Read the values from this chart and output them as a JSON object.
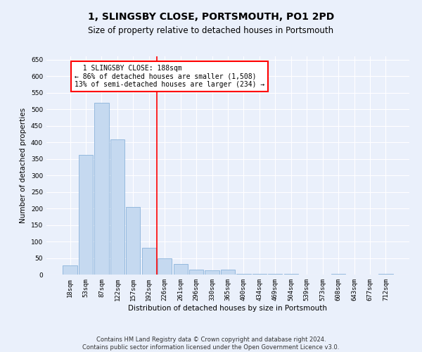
{
  "title": "1, SLINGSBY CLOSE, PORTSMOUTH, PO1 2PD",
  "subtitle": "Size of property relative to detached houses in Portsmouth",
  "xlabel": "Distribution of detached houses by size in Portsmouth",
  "ylabel": "Number of detached properties",
  "categories": [
    "18sqm",
    "53sqm",
    "87sqm",
    "122sqm",
    "157sqm",
    "192sqm",
    "226sqm",
    "261sqm",
    "296sqm",
    "330sqm",
    "365sqm",
    "400sqm",
    "434sqm",
    "469sqm",
    "504sqm",
    "539sqm",
    "573sqm",
    "608sqm",
    "643sqm",
    "677sqm",
    "712sqm"
  ],
  "values": [
    28,
    362,
    520,
    408,
    205,
    80,
    48,
    32,
    14,
    12,
    14,
    2,
    2,
    2,
    2,
    0,
    0,
    2,
    0,
    0,
    2
  ],
  "bar_color": "#c5d9f0",
  "bar_edge_color": "#7aa8d4",
  "vline_x": 5.5,
  "vline_color": "red",
  "annotation_text": "  1 SLINGSBY CLOSE: 188sqm\n← 86% of detached houses are smaller (1,508)\n13% of semi-detached houses are larger (234) →",
  "annotation_box_color": "white",
  "annotation_box_edge_color": "red",
  "ylim": [
    0,
    660
  ],
  "yticks": [
    0,
    50,
    100,
    150,
    200,
    250,
    300,
    350,
    400,
    450,
    500,
    550,
    600,
    650
  ],
  "footnote": "Contains HM Land Registry data © Crown copyright and database right 2024.\nContains public sector information licensed under the Open Government Licence v3.0.",
  "background_color": "#eaf0fb",
  "grid_color": "#ffffff",
  "title_fontsize": 10,
  "subtitle_fontsize": 8.5,
  "axis_label_fontsize": 7.5,
  "tick_fontsize": 6.5,
  "annotation_fontsize": 7,
  "footnote_fontsize": 6
}
